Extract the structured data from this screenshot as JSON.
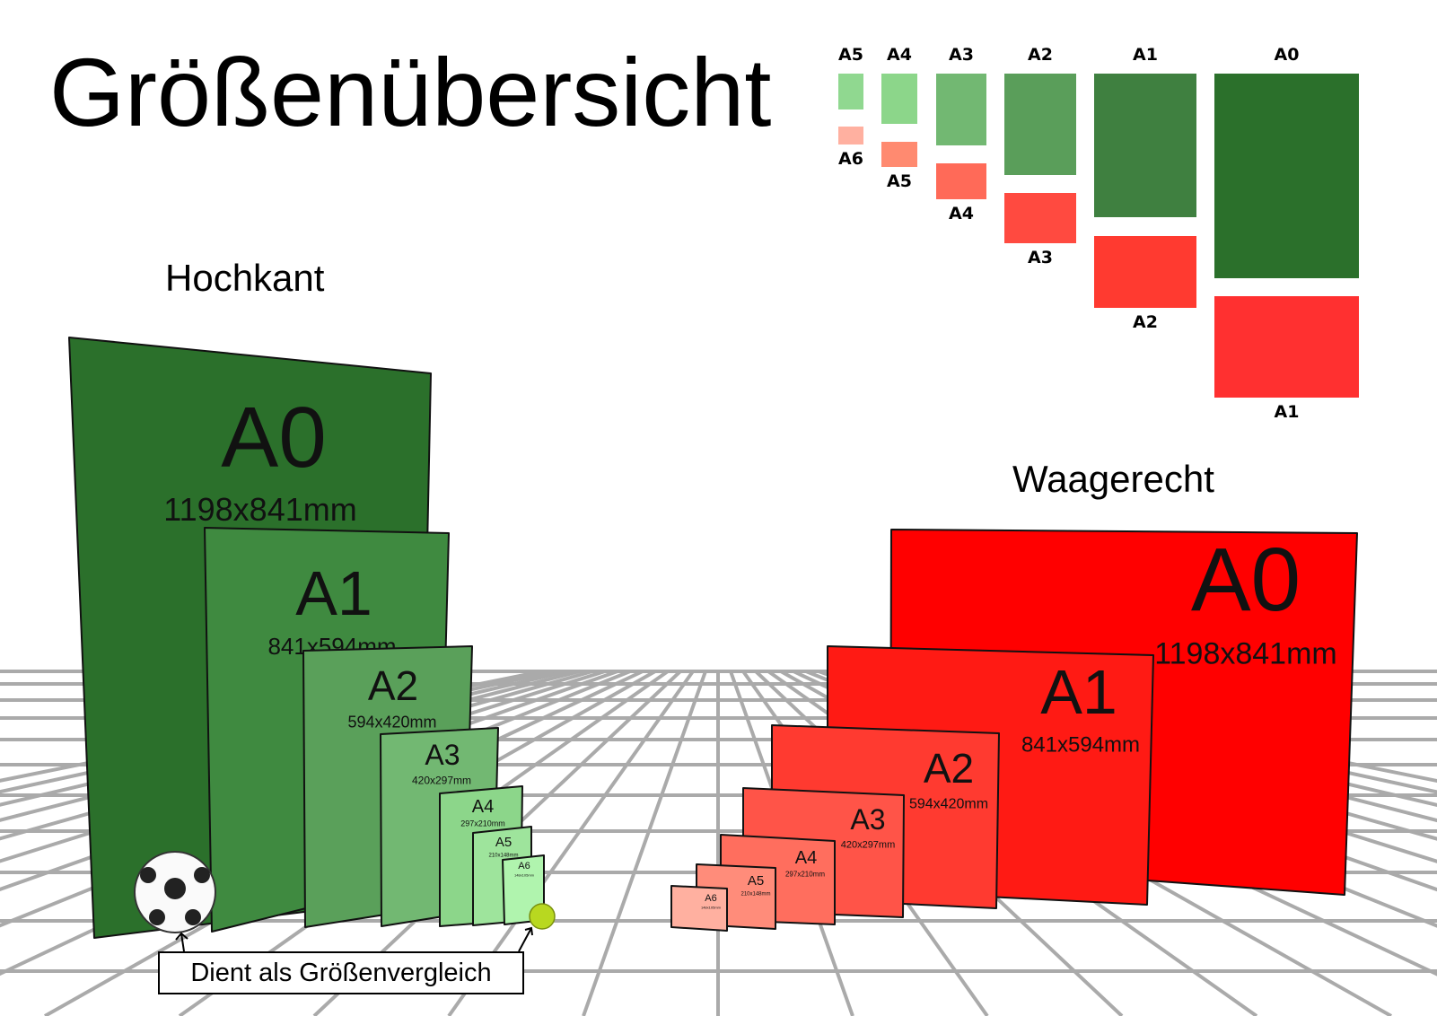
{
  "title": "Größenübersicht",
  "portrait_heading": "Hochkant",
  "landscape_heading": "Waagerecht",
  "comparison_note": "Dient als Größenvergleich",
  "colors": {
    "portrait_accent": "#2e7d32",
    "landscape_accent": "#ff0000",
    "grid": "#aaaaaa"
  },
  "legend": {
    "portrait": [
      {
        "label": "A5",
        "color": "#90d890"
      },
      {
        "label": "A4",
        "color": "#8cd68a"
      },
      {
        "label": "A3",
        "color": "#72b872"
      },
      {
        "label": "A2",
        "color": "#5a9e5a"
      },
      {
        "label": "A1",
        "color": "#3f8040"
      },
      {
        "label": "A0",
        "color": "#2b702b"
      }
    ],
    "landscape": [
      {
        "label": "A6",
        "color": "#ffb0a0"
      },
      {
        "label": "A5",
        "color": "#ff8a70"
      },
      {
        "label": "A4",
        "color": "#ff6a58"
      },
      {
        "label": "A3",
        "color": "#ff4a40"
      },
      {
        "label": "A2",
        "color": "#ff3a30"
      },
      {
        "label": "A1",
        "color": "#ff3030"
      }
    ]
  },
  "portrait_sheets": [
    {
      "label": "A0",
      "size": "1198x841mm",
      "color": "#2b702b"
    },
    {
      "label": "A1",
      "size": "841x594mm",
      "color": "#3f8a40"
    },
    {
      "label": "A2",
      "size": "594x420mm",
      "color": "#5aa05a"
    },
    {
      "label": "A3",
      "size": "420x297mm",
      "color": "#72b872"
    },
    {
      "label": "A4",
      "size": "297x210mm",
      "color": "#8cd68a"
    },
    {
      "label": "A5",
      "size": "210x148mm",
      "color": "#9ee49c"
    },
    {
      "label": "A6",
      "size": "148x105mm",
      "color": "#b0f4ae"
    }
  ],
  "landscape_sheets": [
    {
      "label": "A0",
      "size": "1198x841mm",
      "color": "#ff0000"
    },
    {
      "label": "A1",
      "size": "841x594mm",
      "color": "#ff1a14"
    },
    {
      "label": "A2",
      "size": "594x420mm",
      "color": "#ff3a30"
    },
    {
      "label": "A3",
      "size": "420x297mm",
      "color": "#ff5448"
    },
    {
      "label": "A4",
      "size": "297x210mm",
      "color": "#ff6e5e"
    },
    {
      "label": "A5",
      "size": "210x148mm",
      "color": "#ff8c7a"
    },
    {
      "label": "A6",
      "size": "148x105mm",
      "color": "#ffb0a0"
    }
  ]
}
